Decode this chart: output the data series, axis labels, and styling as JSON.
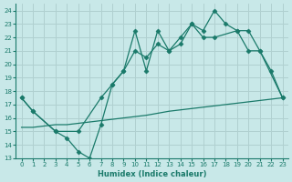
{
  "lineA_x": [
    0,
    1,
    3,
    4,
    5,
    6,
    7,
    8,
    9,
    10,
    11,
    12,
    13,
    14,
    15,
    16,
    17,
    18,
    19,
    20,
    21,
    22,
    23
  ],
  "lineA_y": [
    17.5,
    16.5,
    15.0,
    14.5,
    13.5,
    13.0,
    15.5,
    18.5,
    19.5,
    22.5,
    19.5,
    22.5,
    21.0,
    22.0,
    23.0,
    22.5,
    24.0,
    23.0,
    22.5,
    21.0,
    21.0,
    19.5,
    17.5
  ],
  "lineB_x": [
    0,
    1,
    3,
    5,
    7,
    8,
    9,
    10,
    11,
    12,
    13,
    14,
    15,
    16,
    17,
    19,
    20,
    21,
    23
  ],
  "lineB_y": [
    17.5,
    16.5,
    15.0,
    15.0,
    17.5,
    18.5,
    19.5,
    21.0,
    20.5,
    21.5,
    21.0,
    21.5,
    23.0,
    22.0,
    22.0,
    22.5,
    22.5,
    21.0,
    17.5
  ],
  "lineC_x": [
    0,
    1,
    2,
    3,
    4,
    5,
    6,
    7,
    8,
    9,
    10,
    11,
    12,
    13,
    14,
    15,
    16,
    17,
    18,
    19,
    20,
    21,
    22,
    23
  ],
  "lineC_y": [
    15.3,
    15.3,
    15.4,
    15.5,
    15.5,
    15.6,
    15.7,
    15.8,
    15.9,
    16.0,
    16.1,
    16.2,
    16.35,
    16.5,
    16.6,
    16.7,
    16.8,
    16.9,
    17.0,
    17.1,
    17.2,
    17.3,
    17.4,
    17.5
  ],
  "line_color": "#1a7a6a",
  "bg_color": "#c8e8e8",
  "grid_color": "#b0d0d0",
  "xlabel": "Humidex (Indice chaleur)",
  "xlim": [
    -0.5,
    23.5
  ],
  "ylim": [
    13,
    24.5
  ],
  "yticks": [
    13,
    14,
    15,
    16,
    17,
    18,
    19,
    20,
    21,
    22,
    23,
    24
  ],
  "xticks": [
    0,
    1,
    2,
    3,
    4,
    5,
    6,
    7,
    8,
    9,
    10,
    11,
    12,
    13,
    14,
    15,
    16,
    17,
    18,
    19,
    20,
    21,
    22,
    23
  ]
}
